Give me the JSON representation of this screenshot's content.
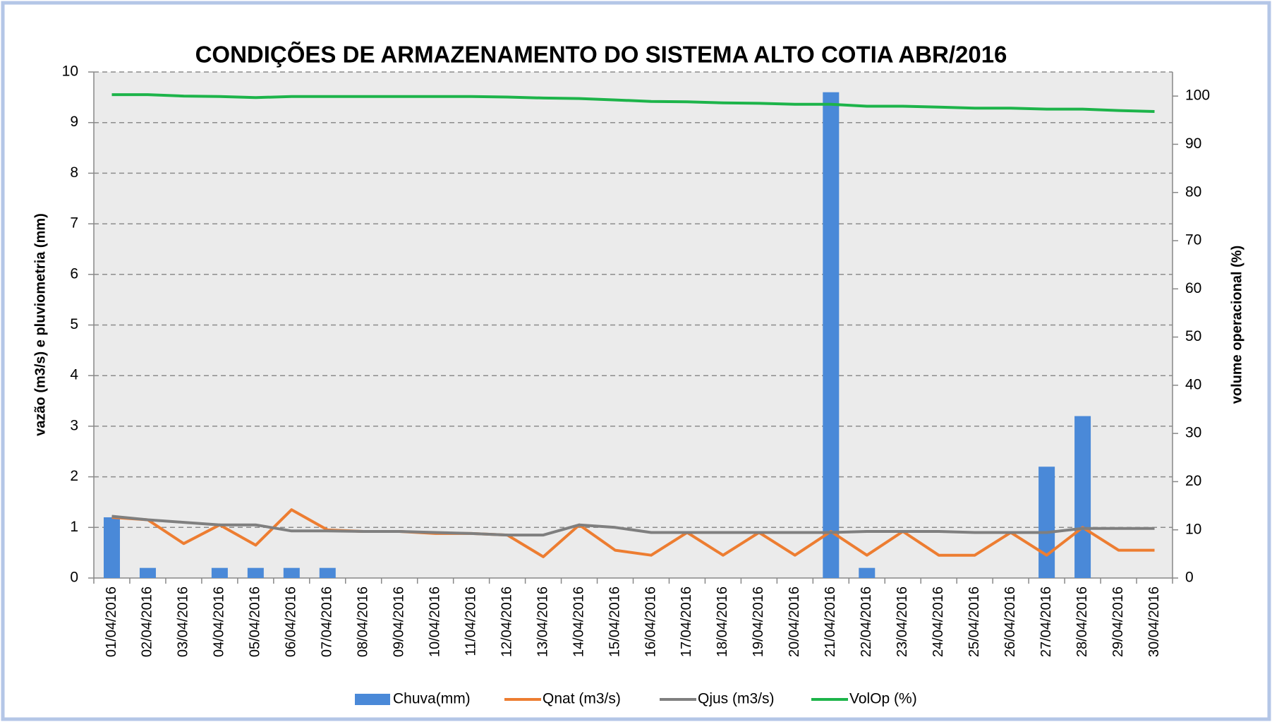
{
  "chart_data": {
    "type": "bar",
    "title": "CONDIÇÕES DE ARMAZENAMENTO DO SISTEMA ALTO COTIA  ABR/2016",
    "y_label": "vazão (m3/s) e pluviometria (mm)",
    "y2_label": "volume operacional (%)",
    "categories": [
      "01/04/2016",
      "02/04/2016",
      "03/04/2016",
      "04/04/2016",
      "05/04/2016",
      "06/04/2016",
      "07/04/2016",
      "08/04/2016",
      "09/04/2016",
      "10/04/2016",
      "11/04/2016",
      "12/04/2016",
      "13/04/2016",
      "14/04/2016",
      "15/04/2016",
      "16/04/2016",
      "17/04/2016",
      "18/04/2016",
      "19/04/2016",
      "20/04/2016",
      "21/04/2016",
      "22/04/2016",
      "23/04/2016",
      "24/04/2016",
      "25/04/2016",
      "26/04/2016",
      "27/04/2016",
      "28/04/2016",
      "29/04/2016",
      "30/04/2016"
    ],
    "series": [
      {
        "name": "Chuva(mm)",
        "type": "bar",
        "color": "#4a89d8",
        "values": [
          1.2,
          0.2,
          0,
          0.2,
          0.2,
          0.2,
          0.2,
          0,
          0,
          0,
          0,
          0,
          0,
          0,
          0,
          0,
          0,
          0,
          0,
          0,
          9.6,
          0.2,
          0,
          0,
          0,
          0,
          2.2,
          3.2,
          0,
          0
        ]
      },
      {
        "name": "Qnat (m3/s)",
        "type": "line",
        "color": "#ed7d31",
        "values": [
          1.2,
          1.15,
          0.68,
          1.05,
          0.65,
          1.35,
          0.95,
          0.92,
          0.92,
          0.88,
          0.88,
          0.85,
          0.42,
          1.05,
          0.55,
          0.45,
          0.9,
          0.45,
          0.9,
          0.45,
          0.92,
          0.45,
          0.92,
          0.45,
          0.45,
          0.9,
          0.45,
          1.0,
          0.55,
          0.55
        ]
      },
      {
        "name": "Qjus (m3/s)",
        "type": "line",
        "color": "#7f7f7f",
        "values": [
          1.22,
          1.15,
          1.1,
          1.05,
          1.05,
          0.93,
          0.93,
          0.92,
          0.92,
          0.9,
          0.88,
          0.85,
          0.85,
          1.05,
          1.0,
          0.9,
          0.9,
          0.9,
          0.9,
          0.9,
          0.9,
          0.92,
          0.92,
          0.92,
          0.9,
          0.9,
          0.9,
          0.98,
          0.98,
          0.98
        ]
      },
      {
        "name": "VolOp (%)",
        "type": "line",
        "axis": "y2",
        "color": "#1db44a",
        "values": [
          100.3,
          100.3,
          100.0,
          99.9,
          99.7,
          99.9,
          99.9,
          99.9,
          99.9,
          99.9,
          99.9,
          99.8,
          99.6,
          99.5,
          99.2,
          98.9,
          98.8,
          98.6,
          98.5,
          98.3,
          98.3,
          97.9,
          97.9,
          97.7,
          97.5,
          97.5,
          97.3,
          97.3,
          97.0,
          96.8
        ]
      }
    ],
    "ylim": [
      0,
      10
    ],
    "yticks": [
      0,
      1,
      2,
      3,
      4,
      5,
      6,
      7,
      8,
      9,
      10
    ],
    "y2lim": [
      0,
      105
    ],
    "y2ticks": [
      0,
      10,
      20,
      30,
      40,
      50,
      60,
      70,
      80,
      90,
      100
    ],
    "grid": true
  }
}
